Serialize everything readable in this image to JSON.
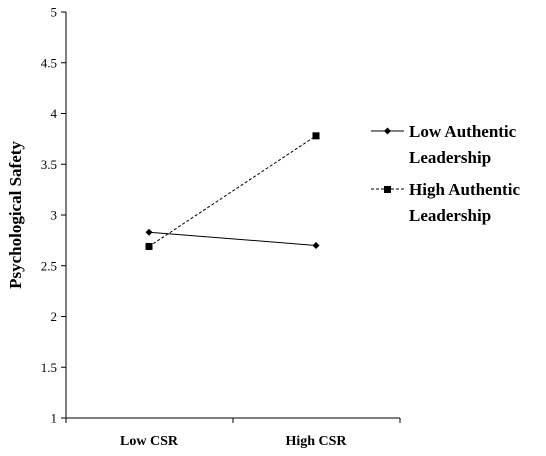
{
  "chart_data": {
    "type": "line",
    "title": "",
    "xlabel": "",
    "ylabel": "Psychological Safety",
    "categories": [
      "Low CSR",
      "High CSR"
    ],
    "ylim": [
      1,
      5
    ],
    "y_ticks": [
      "1",
      "1.5",
      "2",
      "2.5",
      "3",
      "3.5",
      "4",
      "4.5",
      "5"
    ],
    "grid": false,
    "legend_position": "right",
    "series": [
      {
        "name_line1": "Low Authentic",
        "name_line2": "Leadership",
        "values": [
          2.83,
          2.7
        ],
        "marker": "diamond",
        "line_style": "solid",
        "color": "#000000"
      },
      {
        "name_line1": "High Authentic",
        "name_line2": "Leadership",
        "values": [
          2.69,
          3.78
        ],
        "marker": "square",
        "line_style": "dashed",
        "color": "#000000"
      }
    ]
  }
}
